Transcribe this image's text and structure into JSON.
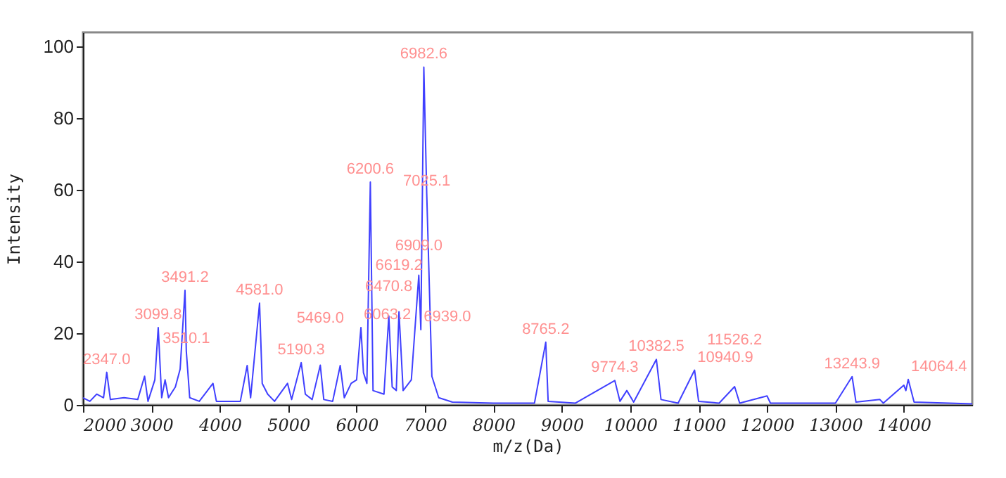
{
  "chart_data": {
    "type": "line",
    "xlabel": "m/z(Da)",
    "ylabel": "Intensity",
    "xlim": [
      2000,
      15000
    ],
    "xticks": [
      2000,
      3000,
      4000,
      5000,
      6000,
      7000,
      8000,
      9000,
      10000,
      11000,
      12000,
      13000,
      14000
    ],
    "ylim": [
      0,
      104
    ],
    "yticks": [
      0,
      20,
      40,
      60,
      80,
      100
    ],
    "grid": false,
    "x": [
      2000,
      2100,
      2200,
      2300,
      2347,
      2400,
      2600,
      2800,
      2900,
      2950,
      3050,
      3099.8,
      3150,
      3200,
      3250,
      3350,
      3420,
      3491.2,
      3510.1,
      3560,
      3700,
      3900,
      3950,
      4100,
      4300,
      4400,
      4450,
      4581,
      4620,
      4700,
      4800,
      4990,
      5050,
      5190.3,
      5250,
      5350,
      5469,
      5520,
      5650,
      5760,
      5820,
      5920,
      6000,
      6063.2,
      6100,
      6150,
      6200.6,
      6240,
      6400,
      6470.8,
      6520,
      6580,
      6619.2,
      6680,
      6800,
      6909,
      6939,
      6982.6,
      7025.1,
      7100,
      7200,
      7400,
      8000,
      8600,
      8765.2,
      8800,
      9200,
      9774.3,
      9850,
      9950,
      10050,
      10382.5,
      10450,
      10700,
      10940.9,
      11000,
      11300,
      11526.2,
      11600,
      12000,
      12050,
      13000,
      13243.9,
      13300,
      13650,
      13700,
      14000,
      14030,
      14064.4,
      14150,
      15000
    ],
    "series": [
      {
        "color": "#4040ff",
        "values": [
          2,
          1,
          3,
          2,
          9.1,
          1.5,
          2,
          1.5,
          8,
          1,
          7,
          21.6,
          2,
          7,
          2,
          5,
          10,
          32,
          15,
          2,
          1,
          6,
          1,
          1,
          1,
          11,
          2,
          28.4,
          6,
          3,
          1,
          6,
          1.5,
          11.8,
          3,
          1.5,
          11.1,
          1.5,
          1,
          11,
          2,
          6,
          7,
          21.6,
          9,
          6,
          62.2,
          4,
          3,
          24.8,
          5,
          4,
          26,
          4,
          7,
          36.2,
          21,
          94.3,
          58.9,
          8,
          2,
          0.8,
          0.5,
          0.5,
          17.5,
          1,
          0.5,
          6.8,
          1,
          4,
          0.8,
          12.7,
          1.5,
          0.5,
          9.7,
          1,
          0.5,
          5.1,
          0.5,
          2.5,
          0.5,
          0.5,
          7.9,
          0.8,
          1.5,
          0.5,
          5.5,
          4,
          7.1,
          0.8,
          0.3
        ]
      }
    ],
    "annotations": [
      {
        "text": "2347.0",
        "x": 2347,
        "y": 9.1
      },
      {
        "text": "3099.8",
        "x": 3099.8,
        "y": 21.6
      },
      {
        "text": "3491.2",
        "x": 3491.2,
        "y": 32
      },
      {
        "text": "3510.1",
        "x": 3510.1,
        "y": 15
      },
      {
        "text": "4581.0",
        "x": 4581,
        "y": 28.4
      },
      {
        "text": "5190.3",
        "x": 5190.3,
        "y": 11.8
      },
      {
        "text": "5469.0",
        "x": 5469,
        "y": 11.1
      },
      {
        "text": "6063.2",
        "x": 6063.2,
        "y": 21.6
      },
      {
        "text": "6200.6",
        "x": 6200.6,
        "y": 62.2
      },
      {
        "text": "6470.8",
        "x": 6470.8,
        "y": 24.8
      },
      {
        "text": "6619.2",
        "x": 6619.2,
        "y": 26
      },
      {
        "text": "6909.0",
        "x": 6909,
        "y": 36.2
      },
      {
        "text": "6939.0",
        "x": 6939,
        "y": 21
      },
      {
        "text": "6982.6",
        "x": 6982.6,
        "y": 94.3
      },
      {
        "text": "7025.1",
        "x": 7025.1,
        "y": 58.9
      },
      {
        "text": "8765.2",
        "x": 8765.2,
        "y": 17.5
      },
      {
        "text": "9774.3",
        "x": 9774.3,
        "y": 6.8
      },
      {
        "text": "10382.5",
        "x": 10382.5,
        "y": 12.7
      },
      {
        "text": "10940.9",
        "x": 10940.9,
        "y": 9.7
      },
      {
        "text": "11526.2",
        "x": 11526.2,
        "y": 5.1
      },
      {
        "text": "13243.9",
        "x": 13243.9,
        "y": 7.9
      },
      {
        "text": "14064.4",
        "x": 14064.4,
        "y": 7.1
      }
    ]
  }
}
